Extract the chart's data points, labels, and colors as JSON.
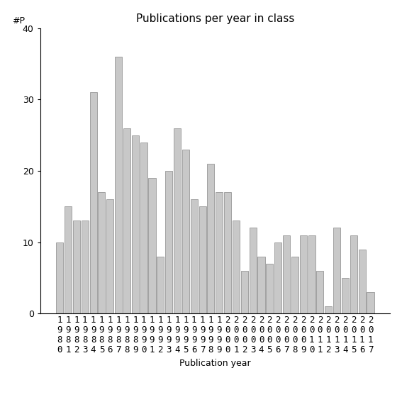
{
  "title": "Publications per year in class",
  "xlabel": "Publication year",
  "ylabel": "#P",
  "years": [
    "1980",
    "1981",
    "1982",
    "1983",
    "1984",
    "1985",
    "1986",
    "1987",
    "1988",
    "1989",
    "1990",
    "1991",
    "1992",
    "1993",
    "1994",
    "1995",
    "1996",
    "1997",
    "1998",
    "1999",
    "2000",
    "2001",
    "2002",
    "2003",
    "2004",
    "2005",
    "2006",
    "2007",
    "2008",
    "2009",
    "2010",
    "2011",
    "2012",
    "2013",
    "2014",
    "2015",
    "2016",
    "2017"
  ],
  "values": [
    10,
    15,
    13,
    13,
    31,
    17,
    16,
    36,
    26,
    25,
    24,
    19,
    8,
    20,
    26,
    23,
    16,
    15,
    21,
    17,
    17,
    13,
    6,
    12,
    8,
    7,
    10,
    11,
    8,
    11,
    11,
    6,
    1,
    12,
    5,
    11,
    9,
    3
  ],
  "bar_color": "#c8c8c8",
  "bar_edge_color": "#888888",
  "ylim": [
    0,
    40
  ],
  "yticks": [
    0,
    10,
    20,
    30,
    40
  ],
  "background_color": "#ffffff",
  "title_fontsize": 11,
  "label_fontsize": 9,
  "tick_fontsize": 9
}
